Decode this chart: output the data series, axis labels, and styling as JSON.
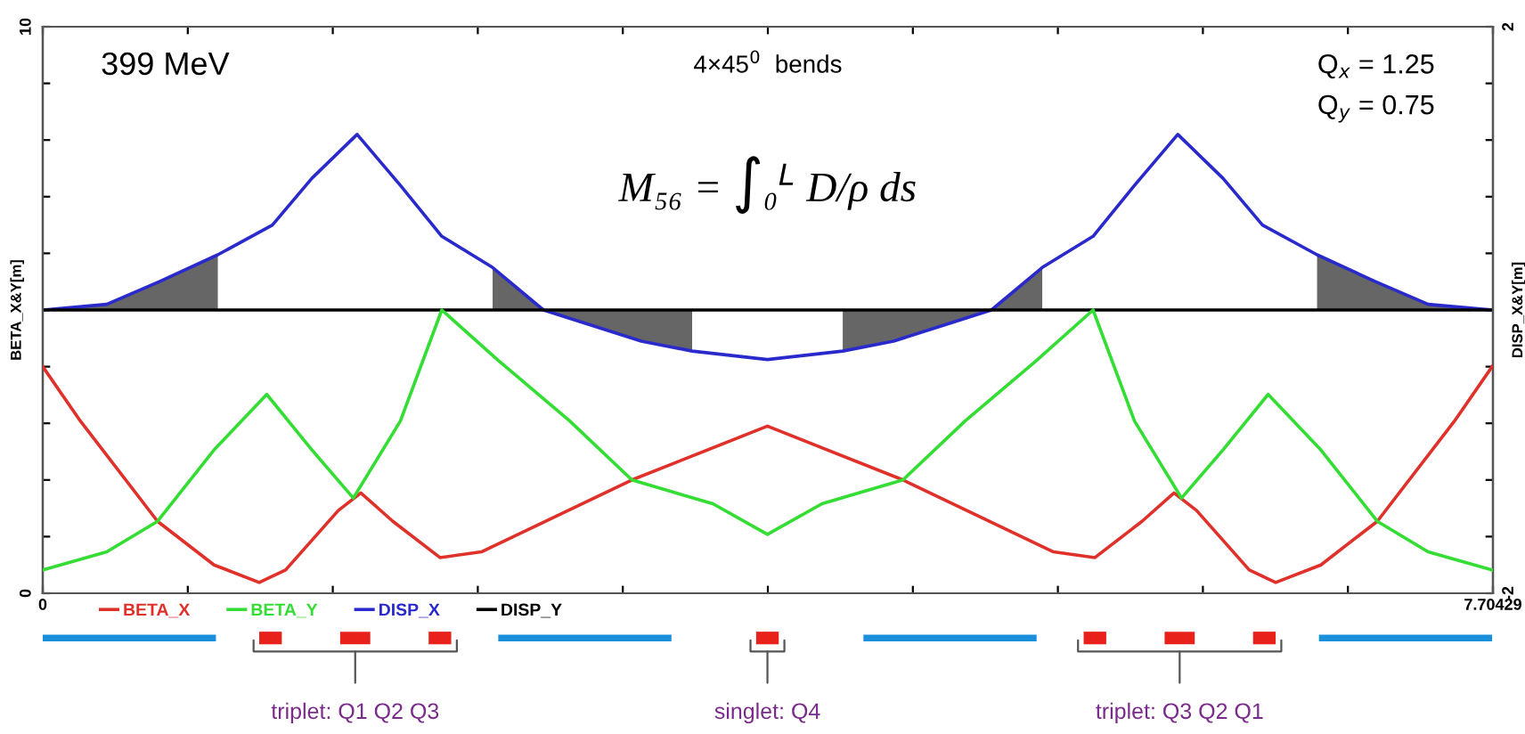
{
  "chart_data": [
    {
      "type": "line",
      "ylabel": "BETA_X&Y[m]",
      "y2label": "DISP_X&Y[m]",
      "annotations": [
        "399 MeV",
        "4×45$^{0}$  bends",
        "M₅₆ = ∫₀$^{L}$ D/ρ ds",
        "Q$_{x}$ = 1.25",
        "Q$_{y}$ = 0.75"
      ],
      "xlim": [
        0,
        7.70429
      ],
      "xticks": [
        0,
        {
          "value": 0.770429,
          "label": null
        },
        {
          "value": 1.540858,
          "label": null
        },
        {
          "value": 2.311287,
          "label": null
        },
        {
          "value": 3.081716,
          "label": null
        },
        {
          "value": 3.852145,
          "label": null
        },
        {
          "value": 4.622574,
          "label": null
        },
        {
          "value": 5.393003,
          "label": null
        },
        {
          "value": 6.163432,
          "label": null
        },
        {
          "value": 6.933861,
          "label": null
        },
        7.70429
      ],
      "ylim": [
        0,
        10
      ],
      "yticks": [
        0,
        {
          "value": 1,
          "label": null
        },
        {
          "value": 2,
          "label": null
        },
        {
          "value": 3,
          "label": null
        },
        {
          "value": 4,
          "label": null
        },
        {
          "value": 5,
          "label": null
        },
        {
          "value": 6,
          "label": null
        },
        {
          "value": 7,
          "label": null
        },
        {
          "value": 8,
          "label": null
        },
        {
          "value": 9,
          "label": null
        },
        10
      ],
      "y2lim": [
        -2,
        2
      ],
      "y2ticks": [
        -2,
        {
          "value": -1.6,
          "label": null
        },
        {
          "value": -1.2,
          "label": null
        },
        {
          "value": -0.8,
          "label": null
        },
        {
          "value": -0.4,
          "label": null
        },
        {
          "value": 0,
          "label": null
        },
        {
          "value": 0.4,
          "label": null
        },
        {
          "value": 0.8,
          "label": null
        },
        {
          "value": 1.2,
          "label": null
        },
        {
          "value": 1.6,
          "label": null
        },
        2
      ],
      "legend": "bottom left",
      "grid": false,
      "series": [
        {
          "type": "area",
          "axis": "y2",
          "color": "#666666",
          "x": [
            0,
            0.34,
            0.62,
            0.93
          ],
          "values": [
            0,
            0.04,
            0.2,
            0.39
          ]
        },
        {
          "type": "area",
          "axis": "y2",
          "color": "#666666",
          "x": [
            2.39,
            2.66,
            2.92,
            3.18,
            3.45
          ],
          "values": [
            0.3,
            0,
            -0.11,
            -0.22,
            -0.29
          ]
        },
        {
          "type": "area",
          "axis": "y2",
          "color": "#666666",
          "x": [
            4.25,
            4.52,
            4.78,
            5.04,
            5.31
          ],
          "values": [
            -0.29,
            -0.22,
            -0.11,
            0,
            0.3
          ]
        },
        {
          "type": "area",
          "axis": "y2",
          "color": "#666666",
          "x": [
            6.77,
            7.08,
            7.36,
            7.7
          ],
          "values": [
            0.39,
            0.2,
            0.04,
            0
          ]
        },
        {
          "name": "BETA_X",
          "color": "#e0302a",
          "x": [
            0,
            0.2,
            0.61,
            0.91,
            1.15,
            1.29,
            1.57,
            1.69,
            1.86,
            2.11,
            2.33,
            3.13,
            3.85,
            4.57,
            5.37,
            5.59,
            5.84,
            6.01,
            6.13,
            6.41,
            6.55,
            6.79,
            7.09,
            7.5,
            7.7
          ],
          "values": [
            4.0,
            3.04,
            1.27,
            0.5,
            0.19,
            0.41,
            1.46,
            1.77,
            1.27,
            0.63,
            0.73,
            2.0,
            2.95,
            2.0,
            0.73,
            0.63,
            1.27,
            1.77,
            1.46,
            0.41,
            0.19,
            0.5,
            1.27,
            3.04,
            4.0
          ]
        },
        {
          "name": "BETA_Y",
          "color": "#33dd33",
          "x": [
            0,
            0.34,
            0.61,
            0.91,
            1.19,
            1.43,
            1.65,
            1.9,
            2.12,
            2.42,
            2.8,
            3.13,
            3.56,
            3.85,
            4.14,
            4.57,
            4.9,
            5.28,
            5.58,
            5.8,
            6.05,
            6.27,
            6.51,
            6.79,
            7.09,
            7.36,
            7.7
          ],
          "values": [
            0.41,
            0.73,
            1.27,
            2.53,
            3.51,
            2.53,
            1.68,
            3.04,
            5.0,
            4.11,
            3.04,
            2.0,
            1.58,
            1.04,
            1.58,
            2.0,
            3.04,
            4.11,
            5.0,
            3.04,
            1.68,
            2.53,
            3.51,
            2.53,
            1.27,
            0.73,
            0.41
          ]
        },
        {
          "name": "DISP_X",
          "axis": "y2",
          "color": "#2a2acc",
          "x": [
            0,
            0.34,
            0.62,
            0.93,
            1.22,
            1.43,
            1.67,
            1.9,
            2.12,
            2.39,
            2.66,
            2.92,
            3.18,
            3.45,
            3.85,
            4.25,
            4.52,
            4.78,
            5.04,
            5.31,
            5.58,
            5.8,
            6.03,
            6.27,
            6.48,
            6.77,
            7.08,
            7.36,
            7.7
          ],
          "values": [
            0,
            0.04,
            0.2,
            0.39,
            0.6,
            0.93,
            1.24,
            0.88,
            0.52,
            0.3,
            0,
            -0.11,
            -0.22,
            -0.29,
            -0.35,
            -0.29,
            -0.22,
            -0.11,
            0,
            0.3,
            0.52,
            0.88,
            1.24,
            0.93,
            0.6,
            0.39,
            0.2,
            0.04,
            0
          ]
        },
        {
          "name": "DISP_Y",
          "axis": "y2",
          "color": "#000000",
          "x": [
            0,
            7.70429
          ],
          "values": [
            0,
            0
          ]
        }
      ]
    },
    {
      "type": "bar",
      "orientation": "horizontal",
      "categories": [
        null
      ],
      "xlim": [
        0,
        7.70429
      ],
      "tick_labels": false,
      "annotations": [
        "triplet: Q1 Q2 Q3",
        "singlet: Q4",
        "triplet: Q3 Q2 Q1"
      ],
      "series": [
        {
          "color": "#1a8fdc",
          "values": [
            0.92
          ],
          "base": [
            0
          ]
        },
        {
          "color": "#1a8fdc",
          "values": [
            0.92
          ],
          "base": [
            2.42
          ]
        },
        {
          "color": "#1a8fdc",
          "values": [
            0.92
          ],
          "base": [
            4.36
          ]
        },
        {
          "color": "#1a8fdc",
          "values": [
            0.92
          ],
          "base": [
            6.78
          ]
        },
        {
          "color": "#e8211b",
          "values": [
            0.12
          ],
          "base": [
            1.15
          ]
        },
        {
          "color": "#e8211b",
          "values": [
            0.16
          ],
          "base": [
            1.58
          ]
        },
        {
          "color": "#e8211b",
          "values": [
            0.12
          ],
          "base": [
            2.05
          ]
        },
        {
          "color": "#e8211b",
          "values": [
            0.12
          ],
          "base": [
            3.79
          ]
        },
        {
          "color": "#e8211b",
          "values": [
            0.12
          ],
          "base": [
            5.53
          ]
        },
        {
          "color": "#e8211b",
          "values": [
            0.16
          ],
          "base": [
            5.96
          ]
        },
        {
          "color": "#e8211b",
          "values": [
            0.12
          ],
          "base": [
            6.43
          ]
        }
      ]
    }
  ]
}
